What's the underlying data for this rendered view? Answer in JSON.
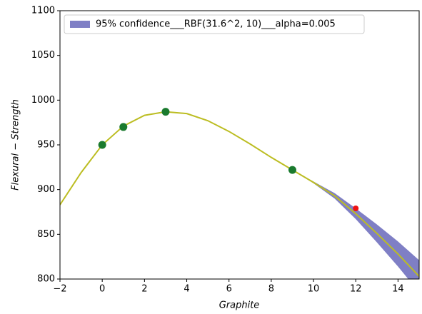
{
  "chart_data": {
    "type": "line",
    "x_label": "Graphite",
    "y_label": "Flexural − Strength",
    "x": [
      -2,
      -1,
      0,
      1,
      2,
      3,
      4,
      5,
      6,
      7,
      8,
      9,
      10,
      11,
      12,
      13,
      14,
      15
    ],
    "mean": {
      "color": "#bcbd22",
      "values": [
        883,
        919,
        950,
        971,
        983,
        987,
        985,
        977,
        965,
        951,
        936,
        922,
        908,
        893,
        873,
        851,
        828,
        803
      ]
    },
    "band": {
      "name": "95% confidence___RBF(31.6^2, 10)___alpha=0.005",
      "color": "#00008b",
      "lower": [
        883,
        919,
        950,
        971,
        983,
        987,
        985,
        977,
        965,
        951,
        936,
        922,
        907,
        890,
        867,
        841,
        814,
        785
      ],
      "upper": [
        883,
        919,
        950,
        971,
        983,
        987,
        985,
        977,
        965,
        951,
        936,
        922,
        909,
        896,
        879,
        861,
        842,
        821
      ]
    },
    "points": {
      "color": "#1a7a2e",
      "x": [
        0,
        1,
        3,
        9
      ],
      "y": [
        950,
        970,
        987,
        922
      ]
    },
    "outlier": {
      "color": "#ee1111",
      "x": [
        12
      ],
      "y": [
        879
      ]
    },
    "xlim": [
      -2,
      15
    ],
    "ylim": [
      800,
      1100
    ],
    "xticks": [
      {
        "value": -2,
        "label": "−2"
      },
      0,
      2,
      4,
      6,
      8,
      10,
      12,
      14
    ],
    "yticks": [
      800,
      850,
      900,
      950,
      1000,
      1050,
      1100
    ],
    "legend": "upper left"
  }
}
